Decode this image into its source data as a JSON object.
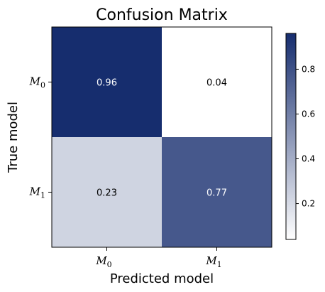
{
  "chart_data": {
    "type": "heatmap",
    "title": "Confusion Matrix",
    "xlabel": "Predicted model",
    "ylabel": "True model",
    "x_categories": [
      {
        "base": "M",
        "sub": "0"
      },
      {
        "base": "M",
        "sub": "1"
      }
    ],
    "y_categories": [
      {
        "base": "M",
        "sub": "0"
      },
      {
        "base": "M",
        "sub": "1"
      }
    ],
    "values": [
      [
        0.96,
        0.04
      ],
      [
        0.23,
        0.77
      ]
    ],
    "value_labels": [
      [
        "0.96",
        "0.04"
      ],
      [
        "0.23",
        "0.77"
      ]
    ],
    "colorbar": {
      "range": [
        0.04,
        0.96
      ],
      "ticks": [
        0.2,
        0.4,
        0.6,
        0.8
      ],
      "tick_labels": [
        "0.2",
        "0.4",
        "0.6",
        "0.8"
      ],
      "color_low": "#ffffff",
      "color_high": "#162d6e"
    }
  }
}
